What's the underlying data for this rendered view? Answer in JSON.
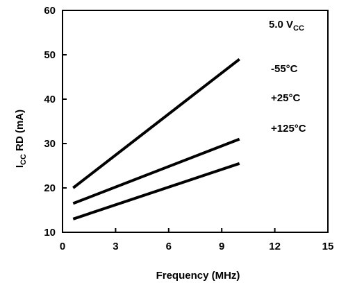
{
  "chart_data": {
    "type": "line",
    "xlabel": "Frequency (MHz)",
    "ylabel": {
      "main": "I",
      "sub": "CC",
      "rest": " RD (mA)"
    },
    "xlim": [
      0,
      15
    ],
    "ylim": [
      10,
      60
    ],
    "x_ticks": [
      "0",
      "3",
      "6",
      "9",
      "12",
      "15"
    ],
    "y_ticks": [
      "10",
      "20",
      "30",
      "40",
      "50",
      "60"
    ],
    "grid": false,
    "supply_label": {
      "main": "5.0 V",
      "sub": "CC"
    },
    "legend_labels": [
      "-55°C",
      "+25°C",
      "+125°C"
    ],
    "series": [
      {
        "name": "-55°C",
        "x": [
          0.6,
          10
        ],
        "y": [
          20,
          49
        ]
      },
      {
        "name": "+25°C",
        "x": [
          0.6,
          10
        ],
        "y": [
          16.5,
          31
        ]
      },
      {
        "name": "+125°C",
        "x": [
          0.6,
          10
        ],
        "y": [
          13,
          25.5
        ]
      }
    ],
    "line_color": "#000000"
  }
}
